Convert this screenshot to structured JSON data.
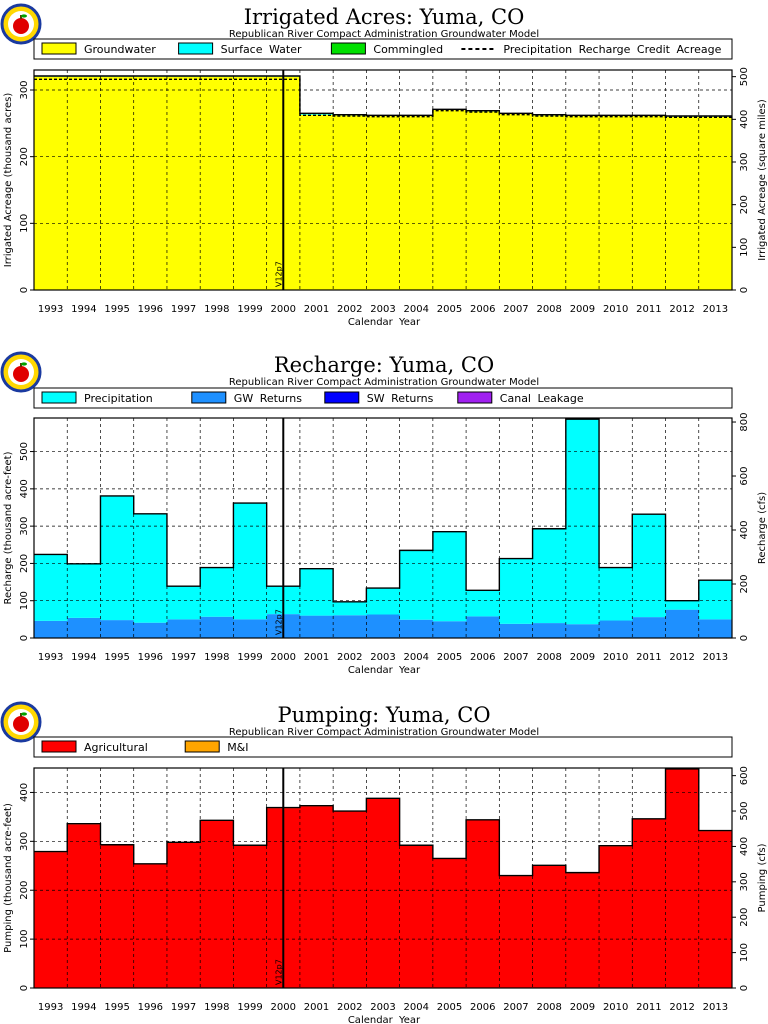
{
  "years": [
    "1993",
    "1994",
    "1995",
    "1996",
    "1997",
    "1998",
    "1999",
    "2000",
    "2001",
    "2002",
    "2003",
    "2004",
    "2005",
    "2006",
    "2007",
    "2008",
    "2009",
    "2010",
    "2011",
    "2012",
    "2013"
  ],
  "chart_data": [
    {
      "type": "area",
      "title": "Irrigated Acres: Yuma, CO",
      "subtitle": "Republican River Compact Administration Groundwater Model",
      "xlabel": "Calendar Year",
      "ylabel": "Irrigated Acreage (thousand acres)",
      "ylabel_right": "Irrigated Acreage (square miles)",
      "ylim": [
        0,
        330
      ],
      "yticks": [
        0,
        100,
        200,
        300
      ],
      "ylim_right": [
        0,
        515.6
      ],
      "yticks_right": [
        0,
        100,
        200,
        300,
        400,
        500
      ],
      "marker_label": "V12p7",
      "marker_year": "2000.5",
      "legend": {
        "placement": "top",
        "items": [
          {
            "name": "Groundwater",
            "color": "#ffff00",
            "kind": "box"
          },
          {
            "name": "Surface Water",
            "color": "#00ffff",
            "kind": "box"
          },
          {
            "name": "Commingled",
            "color": "#00e000",
            "kind": "box"
          },
          {
            "name": "Precipitation Recharge Credit Acreage",
            "color": "#000000",
            "kind": "dash"
          }
        ]
      },
      "series": [
        {
          "name": "Groundwater",
          "color": "#ffff00",
          "values": [
            320,
            320,
            320,
            320,
            320,
            320,
            320,
            320,
            263,
            262,
            261,
            261,
            270,
            268,
            264,
            262,
            261,
            261,
            261,
            260,
            260
          ]
        },
        {
          "name": "Surface Water",
          "color": "#00ffff",
          "values": [
            1,
            1,
            1,
            1,
            1,
            1,
            1,
            1,
            2,
            1,
            1,
            1,
            1,
            1,
            1,
            1,
            1,
            1,
            1,
            1,
            1
          ]
        },
        {
          "name": "Commingled",
          "color": "#00e000",
          "values": [
            0,
            0,
            0,
            0,
            0,
            0,
            0,
            0,
            0,
            0,
            0,
            0,
            0,
            0,
            0,
            0,
            0,
            0,
            0,
            0,
            0
          ]
        }
      ],
      "dashed_line": {
        "name": "Precipitation Recharge Credit Acreage",
        "values": [
          316,
          316,
          316,
          316,
          316,
          316,
          316,
          316,
          262,
          261,
          260,
          260,
          269,
          267,
          263,
          261,
          260,
          260,
          260,
          259,
          259
        ]
      }
    },
    {
      "type": "area",
      "title": "Recharge: Yuma, CO",
      "subtitle": "Republican River Compact Administration Groundwater Model",
      "xlabel": "Calendar Year",
      "ylabel": "Recharge (thousand acre-feet)",
      "ylabel_right": "Recharge (cfs)",
      "ylim": [
        0,
        590
      ],
      "yticks": [
        0,
        100,
        200,
        300,
        400,
        500
      ],
      "ylim_right": [
        0,
        814.9
      ],
      "yticks_right": [
        0,
        200,
        400,
        600,
        800
      ],
      "marker_label": "V12p7",
      "marker_year": "2000.5",
      "legend": {
        "placement": "top",
        "items": [
          {
            "name": "Precipitation",
            "color": "#00ffff",
            "kind": "box"
          },
          {
            "name": "GW Returns",
            "color": "#1e90ff",
            "kind": "box"
          },
          {
            "name": "SW Returns",
            "color": "#0000ff",
            "kind": "box"
          },
          {
            "name": "Canal Leakage",
            "color": "#a020f0",
            "kind": "box"
          }
        ]
      },
      "series": [
        {
          "name": "GW Returns",
          "color": "#1e90ff",
          "values": [
            46,
            54,
            48,
            41,
            50,
            57,
            50,
            64,
            60,
            61,
            63,
            49,
            45,
            58,
            38,
            40,
            37,
            47,
            56,
            76,
            50
          ]
        },
        {
          "name": "SW Returns",
          "color": "#0000ff",
          "values": [
            0,
            0,
            0,
            0,
            0,
            0,
            0,
            0,
            0,
            0,
            0,
            0,
            0,
            0,
            0,
            0,
            0,
            0,
            0,
            0,
            0
          ]
        },
        {
          "name": "Canal Leakage",
          "color": "#a020f0",
          "values": [
            0,
            0,
            0,
            0,
            0,
            0,
            0,
            0,
            0,
            0,
            0,
            0,
            0,
            0,
            0,
            0,
            0,
            0,
            0,
            0,
            0
          ]
        },
        {
          "name": "Precipitation",
          "color": "#00ffff",
          "values": [
            178,
            145,
            333,
            292,
            89,
            132,
            312,
            75,
            126,
            36,
            71,
            186,
            240,
            70,
            175,
            253,
            550,
            142,
            276,
            24,
            105
          ]
        }
      ]
    },
    {
      "type": "area",
      "title": "Pumping: Yuma, CO",
      "subtitle": "Republican River Compact Administration Groundwater Model",
      "xlabel": "Calendar Year",
      "ylabel": "Pumping (thousand acre-feet)",
      "ylabel_right": "Pumping (cfs)",
      "ylim": [
        0,
        450
      ],
      "yticks": [
        0,
        100,
        200,
        300,
        400
      ],
      "ylim_right": [
        0,
        621.6
      ],
      "yticks_right": [
        0,
        100,
        200,
        300,
        400,
        500,
        600
      ],
      "marker_label": "V12p7",
      "marker_year": "2000.5",
      "legend": {
        "placement": "top",
        "items": [
          {
            "name": "Agricultural",
            "color": "#ff0000",
            "kind": "box"
          },
          {
            "name": "M&I",
            "color": "#ffa500",
            "kind": "box"
          }
        ]
      },
      "series": [
        {
          "name": "Agricultural",
          "color": "#ff0000",
          "values": [
            278,
            335,
            292,
            253,
            297,
            342,
            291,
            368,
            372,
            361,
            387,
            291,
            264,
            343,
            229,
            250,
            235,
            290,
            345,
            447,
            321
          ]
        },
        {
          "name": "M&I",
          "color": "#ffa500",
          "values": [
            1,
            1,
            1,
            1,
            1,
            1,
            1,
            1,
            1,
            1,
            1,
            1,
            1,
            1,
            1,
            1,
            1,
            1,
            1,
            1,
            1
          ]
        }
      ]
    }
  ]
}
